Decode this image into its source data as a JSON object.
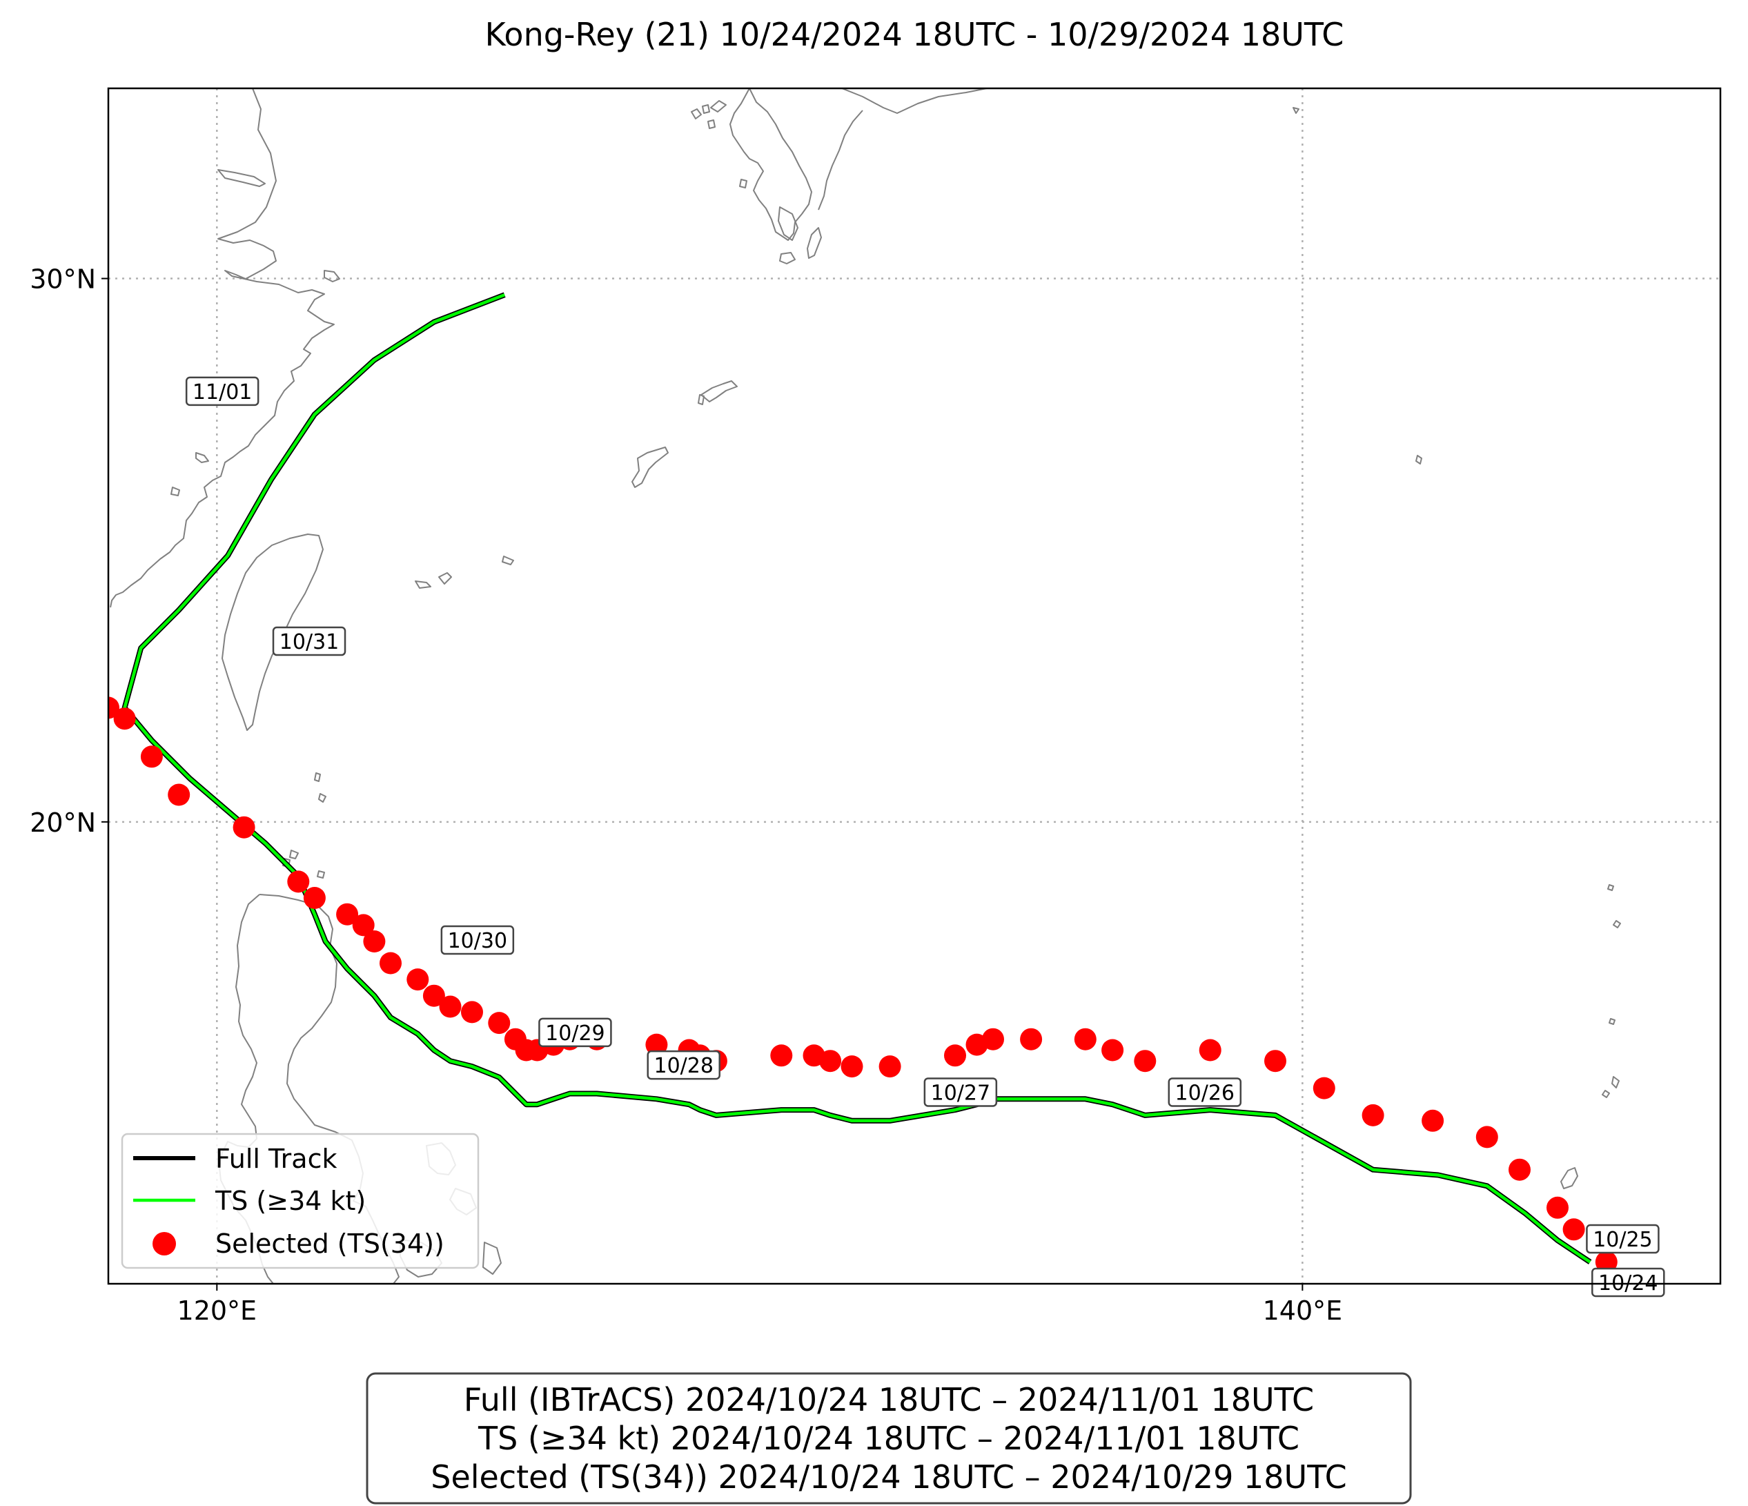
{
  "title": "Kong-Rey (21)   10/24/2024 18UTC - 10/29/2024 18UTC",
  "axes": {
    "lon_ticks": [
      {
        "value": 120,
        "label": "120°E"
      },
      {
        "value": 140,
        "label": "140°E"
      }
    ],
    "lat_ticks": [
      {
        "value": 30,
        "label": "30°N"
      },
      {
        "value": 20,
        "label": "20°N"
      }
    ],
    "lon_range": [
      118.0,
      147.7
    ],
    "lat_range": [
      11.5,
      33.5
    ],
    "grid": true
  },
  "colors": {
    "full_track": "#000000",
    "ts_track": "#00ff00",
    "selected": "#ff0000",
    "coastline": "#808080"
  },
  "legend": {
    "placement": "lower-left",
    "items": [
      {
        "label": "Full Track",
        "kind": "line",
        "color": "#000000"
      },
      {
        "label": "TS (≥34 kt)",
        "kind": "line",
        "color": "#00ff00"
      },
      {
        "label": "Selected (TS(34))",
        "kind": "dot",
        "color": "#ff0000"
      }
    ]
  },
  "info_box": {
    "lines": [
      "Full (IBTrACS)   2024/10/24 18UTC – 2024/11/01 18UTC",
      "TS (≥34 kt)   2024/10/24 18UTC – 2024/11/01 18UTC",
      "Selected (TS(34))   2024/10/24 18UTC – 2024/10/29 18UTC"
    ]
  },
  "chart_data": {
    "type": "scatter",
    "track": [
      [
        145.3,
        11.9
      ],
      [
        145.0,
        12.1
      ],
      [
        144.7,
        12.3
      ],
      [
        144.1,
        12.8
      ],
      [
        143.4,
        13.3
      ],
      [
        142.5,
        13.5
      ],
      [
        141.3,
        13.6
      ],
      [
        140.4,
        14.1
      ],
      [
        139.5,
        14.6
      ],
      [
        138.3,
        14.7
      ],
      [
        137.1,
        14.6
      ],
      [
        136.5,
        14.8
      ],
      [
        136.0,
        14.9
      ],
      [
        135.0,
        14.9
      ],
      [
        134.3,
        14.9
      ],
      [
        134.0,
        14.8
      ],
      [
        133.6,
        14.7
      ],
      [
        132.4,
        14.5
      ],
      [
        131.7,
        14.5
      ],
      [
        131.3,
        14.6
      ],
      [
        131.0,
        14.7
      ],
      [
        130.4,
        14.7
      ],
      [
        129.2,
        14.6
      ],
      [
        128.9,
        14.7
      ],
      [
        128.7,
        14.8
      ],
      [
        128.1,
        14.9
      ],
      [
        127.0,
        15.0
      ],
      [
        126.5,
        15.0
      ],
      [
        126.2,
        14.9
      ],
      [
        125.9,
        14.8
      ],
      [
        125.7,
        14.8
      ],
      [
        125.5,
        15.0
      ],
      [
        125.2,
        15.3
      ],
      [
        124.7,
        15.5
      ],
      [
        124.3,
        15.6
      ],
      [
        124.0,
        15.8
      ],
      [
        123.7,
        16.1
      ],
      [
        123.2,
        16.4
      ],
      [
        122.9,
        16.8
      ],
      [
        122.7,
        17.0
      ],
      [
        122.4,
        17.3
      ],
      [
        122.0,
        17.8
      ],
      [
        121.8,
        18.3
      ],
      [
        121.5,
        19.0
      ],
      [
        120.9,
        19.6
      ],
      [
        120.2,
        20.2
      ],
      [
        119.5,
        20.8
      ],
      [
        118.8,
        21.5
      ],
      [
        118.3,
        22.1
      ],
      [
        118.6,
        23.2
      ],
      [
        119.3,
        23.9
      ],
      [
        120.2,
        24.9
      ],
      [
        121.0,
        26.3
      ],
      [
        121.8,
        27.5
      ],
      [
        122.9,
        28.5
      ],
      [
        124.0,
        29.2
      ],
      [
        125.3,
        29.7
      ]
    ],
    "full_track": [
      [
        145.6,
        11.9
      ],
      [
        145.0,
        12.5
      ],
      [
        144.7,
        12.9
      ],
      [
        144.0,
        13.6
      ],
      [
        143.4,
        14.2
      ],
      [
        142.4,
        14.5
      ],
      [
        141.3,
        14.6
      ],
      [
        140.4,
        15.1
      ],
      [
        139.5,
        15.6
      ],
      [
        138.3,
        15.8
      ],
      [
        137.1,
        15.6
      ],
      [
        136.5,
        15.8
      ],
      [
        136.0,
        16.0
      ],
      [
        135.0,
        16.0
      ],
      [
        134.3,
        16.0
      ],
      [
        134.0,
        15.9
      ],
      [
        133.6,
        15.7
      ],
      [
        132.4,
        15.5
      ],
      [
        131.7,
        15.5
      ],
      [
        131.3,
        15.6
      ],
      [
        131.0,
        15.7
      ],
      [
        130.4,
        15.7
      ],
      [
        129.2,
        15.6
      ],
      [
        128.9,
        15.7
      ],
      [
        128.7,
        15.8
      ],
      [
        128.1,
        15.9
      ],
      [
        127.0,
        16.0
      ],
      [
        126.5,
        16.0
      ],
      [
        126.2,
        15.9
      ],
      [
        125.9,
        15.8
      ],
      [
        125.7,
        15.8
      ],
      [
        125.5,
        16.0
      ],
      [
        125.2,
        16.3
      ],
      [
        124.7,
        16.5
      ],
      [
        124.3,
        16.6
      ],
      [
        124.0,
        16.8
      ],
      [
        123.7,
        17.1
      ],
      [
        123.2,
        17.4
      ],
      [
        122.9,
        17.8
      ],
      [
        122.7,
        18.1
      ],
      [
        122.4,
        18.3
      ],
      [
        121.8,
        18.6
      ],
      [
        121.5,
        18.9
      ],
      [
        120.5,
        19.9
      ],
      [
        119.3,
        20.5
      ],
      [
        118.8,
        21.2
      ],
      [
        118.3,
        21.9
      ],
      [
        118.0,
        22.1
      ]
    ],
    "ts_track": [],
    "selected_points": [],
    "date_labels": [
      {
        "text": "10/24",
        "lon": 146.0,
        "lat": 11.5
      },
      {
        "text": "10/25",
        "lon": 145.9,
        "lat": 12.3
      },
      {
        "text": "10/26",
        "lon": 138.2,
        "lat": 15.0
      },
      {
        "text": "10/27",
        "lon": 133.7,
        "lat": 15.0
      },
      {
        "text": "10/28",
        "lon": 128.6,
        "lat": 15.5
      },
      {
        "text": "10/29",
        "lon": 126.6,
        "lat": 16.1
      },
      {
        "text": "10/30",
        "lon": 124.8,
        "lat": 17.8
      },
      {
        "text": "10/31",
        "lon": 121.7,
        "lat": 23.3
      },
      {
        "text": "11/01",
        "lon": 120.1,
        "lat": 27.9
      }
    ]
  }
}
